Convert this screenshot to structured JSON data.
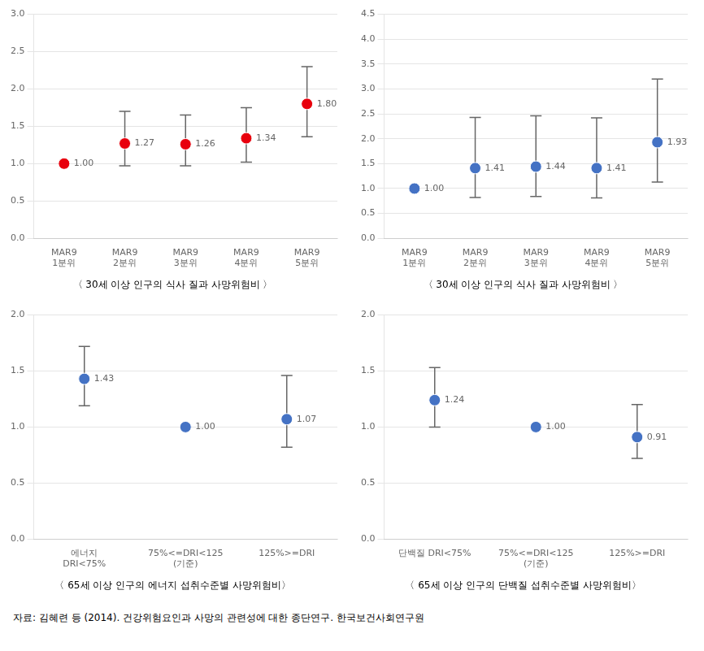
{
  "chart_data": [
    {
      "type": "scatter",
      "title": "〈 30세 이상 인구의 식사 질과 사망위험비 〉",
      "categories": [
        "MAR9\n1분위",
        "MAR9\n2분위",
        "MAR9\n3분위",
        "MAR9\n4분위",
        "MAR9\n5분위"
      ],
      "values": [
        1.0,
        1.27,
        1.26,
        1.34,
        1.8
      ],
      "value_labels": [
        "1.00",
        "1.27",
        "1.26",
        "1.34",
        "1.80"
      ],
      "ci_low": [
        1.0,
        0.97,
        0.97,
        1.02,
        1.36
      ],
      "ci_high": [
        1.0,
        1.7,
        1.65,
        1.75,
        2.3
      ],
      "color": "#e8000d",
      "ylim": [
        0.0,
        3.0
      ],
      "yticks": [
        {
          "value": 0,
          "label": "0.0"
        },
        0.5,
        {
          "value": 1,
          "label": "1.0"
        },
        1.5,
        {
          "value": 2,
          "label": "2.0"
        },
        2.5,
        {
          "value": 3,
          "label": "3.0"
        }
      ],
      "grid": true,
      "data_labels": true
    },
    {
      "type": "scatter",
      "title": "〈 30세 이상 인구의 식사 질과 사망위험비 〉",
      "categories": [
        "MAR9\n1분위",
        "MAR9\n2분위",
        "MAR9\n3분위",
        "MAR9\n4분위",
        "MAR9\n5분위"
      ],
      "values": [
        1.0,
        1.41,
        1.44,
        1.41,
        1.93
      ],
      "value_labels": [
        "1.00",
        "1.41",
        "1.44",
        "1.41",
        "1.93"
      ],
      "ci_low": [
        1.0,
        0.82,
        0.84,
        0.81,
        1.13
      ],
      "ci_high": [
        1.0,
        2.43,
        2.46,
        2.42,
        3.2
      ],
      "color": "#4472c4",
      "ylim": [
        0.0,
        4.5
      ],
      "yticks": [
        {
          "value": 0,
          "label": "0.0"
        },
        0.5,
        {
          "value": 1,
          "label": "1.0"
        },
        1.5,
        {
          "value": 2,
          "label": "2.0"
        },
        2.5,
        {
          "value": 3,
          "label": "3.0"
        },
        3.5,
        {
          "value": 4,
          "label": "4.0"
        },
        4.5
      ],
      "grid": true,
      "data_labels": true
    },
    {
      "type": "scatter",
      "title": "〈 65세 이상 인구의 에너지 섭취수준별 사망위험비〉",
      "categories": [
        "에너지\nDRI<75%",
        "75%<=DRI<125\n(기준)",
        "125%>=DRI"
      ],
      "values": [
        1.43,
        1.0,
        1.07
      ],
      "value_labels": [
        "1.43",
        "1.00",
        "1.07"
      ],
      "ci_low": [
        1.19,
        1.0,
        0.82
      ],
      "ci_high": [
        1.72,
        1.0,
        1.46
      ],
      "color": "#4472c4",
      "ylim": [
        0.0,
        2.0
      ],
      "yticks": [
        {
          "value": 0,
          "label": "0.0"
        },
        0.5,
        {
          "value": 1,
          "label": "1.0"
        },
        1.5,
        {
          "value": 2,
          "label": "2.0"
        }
      ],
      "grid": true,
      "data_labels": true
    },
    {
      "type": "scatter",
      "title": "〈 65세 이상 인구의 단백질 섭취수준별 사망위험비〉",
      "categories": [
        "단백질 DRI<75%",
        "75%<=DRI<125\n(기준)",
        "125%>=DRI"
      ],
      "values": [
        1.24,
        1.0,
        0.91
      ],
      "value_labels": [
        "1.24",
        "1.00",
        "0.91"
      ],
      "ci_low": [
        1.0,
        1.0,
        0.72
      ],
      "ci_high": [
        1.53,
        1.0,
        1.2
      ],
      "color": "#4472c4",
      "ylim": [
        0.0,
        2.0
      ],
      "yticks": [
        {
          "value": 0,
          "label": "0.0"
        },
        0.5,
        {
          "value": 1,
          "label": "1.0"
        },
        1.5,
        {
          "value": 2,
          "label": "2.0"
        }
      ],
      "grid": true,
      "data_labels": true
    }
  ],
  "footnote": "자료: 김혜련 등 (2014). 건강위험요인과 사망의 관련성에 대한 종단연구. 한국보건사회연구원"
}
